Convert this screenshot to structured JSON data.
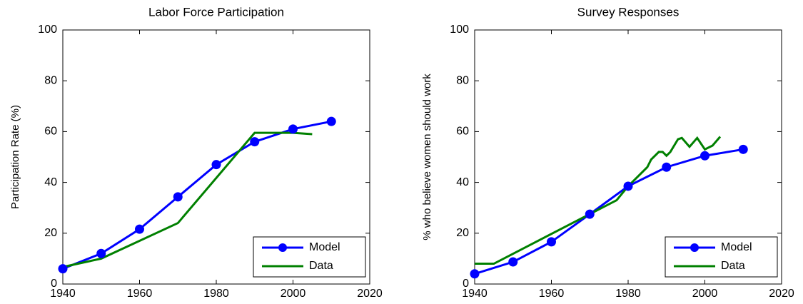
{
  "chart_data": [
    {
      "type": "line",
      "title": "Labor Force Participation",
      "ylabel": "Participation Rate (%)",
      "xlim": [
        1940,
        2020
      ],
      "xticks": [
        1940,
        1960,
        1980,
        2000,
        2020
      ],
      "ylim": [
        0,
        100
      ],
      "yticks": [
        0,
        20,
        40,
        60,
        80,
        100
      ],
      "grid": false,
      "legend": "lower right",
      "series": [
        {
          "name": "Model",
          "color": "#0000ff",
          "marker": "circle",
          "x": [
            1940,
            1950,
            1960,
            1970,
            1980,
            1990,
            2000,
            2010
          ],
          "values": [
            6,
            12,
            21.6,
            34.3,
            47,
            56,
            61,
            64
          ]
        },
        {
          "name": "Data",
          "color": "#008000",
          "marker": "none",
          "x": [
            1940,
            1950,
            1970,
            1990,
            2000,
            2005
          ],
          "values": [
            6.7,
            10,
            24,
            59.5,
            59.5,
            59
          ]
        }
      ]
    },
    {
      "type": "line",
      "title": "Survey Responses",
      "ylabel": "% who believe women should work",
      "xlim": [
        1940,
        2020
      ],
      "xticks": [
        1940,
        1960,
        1980,
        2000,
        2020
      ],
      "ylim": [
        0,
        100
      ],
      "yticks": [
        0,
        20,
        40,
        60,
        80,
        100
      ],
      "grid": false,
      "legend": "lower right",
      "series": [
        {
          "name": "Model",
          "color": "#0000ff",
          "marker": "circle",
          "x": [
            1940,
            1950,
            1960,
            1970,
            1980,
            1990,
            2000,
            2010
          ],
          "values": [
            4,
            8.7,
            16.6,
            27.5,
            38.5,
            46,
            50.5,
            53
          ]
        },
        {
          "name": "Data",
          "color": "#008000",
          "marker": "none",
          "x": [
            1940,
            1945,
            1977,
            1980,
            1985,
            1986,
            1988,
            1989,
            1990,
            1991,
            1992,
            1993,
            1994,
            1996,
            1998,
            2000,
            2002,
            2004
          ],
          "values": [
            8,
            8,
            33,
            38.5,
            46,
            49,
            52,
            52,
            50.5,
            52,
            54.5,
            57,
            57.5,
            54,
            57.5,
            53,
            54.5,
            58
          ]
        }
      ]
    }
  ]
}
